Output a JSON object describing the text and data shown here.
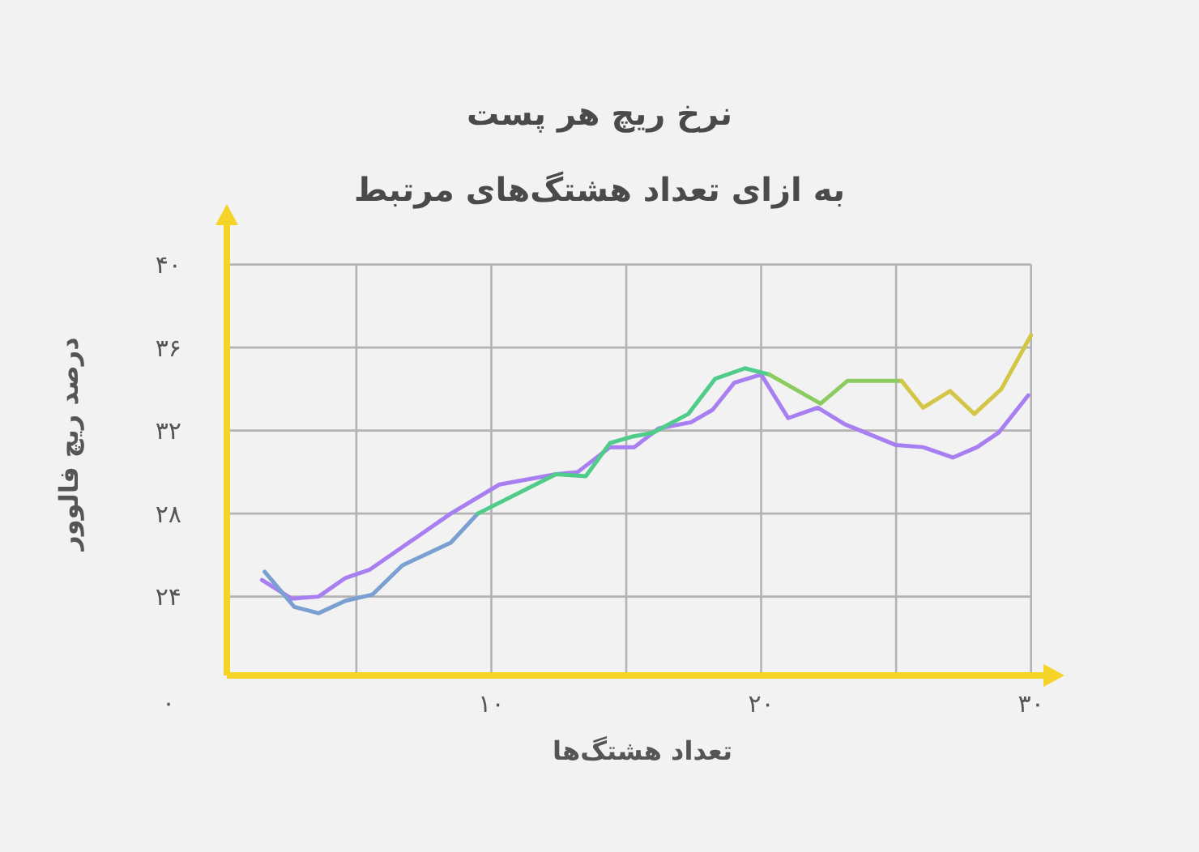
{
  "chart_data": {
    "type": "line",
    "title": "نرخ ریچ هر پست",
    "subtitle": "به ازای تعداد هشتگ‌های مرتبط",
    "xlabel": "تعداد هشتگ‌ها",
    "ylabel": "درصد ریچ فالوور",
    "annotations": [
      "۰"
    ],
    "xlim": [
      0.2,
      31
    ],
    "xticks": [
      {
        "value": 5,
        "label": null
      },
      {
        "value": 10,
        "label": "۱۰"
      },
      {
        "value": 15,
        "label": null
      },
      {
        "value": 20,
        "label": "۲۰"
      },
      {
        "value": 25,
        "label": null
      },
      {
        "value": 30,
        "label": "۳۰"
      }
    ],
    "ylim": [
      20.2,
      42.6
    ],
    "yticks": [
      {
        "value": 24,
        "label": "۲۴"
      },
      {
        "value": 28,
        "label": "۲۸"
      },
      {
        "value": 32,
        "label": "۳۲"
      },
      {
        "value": 36,
        "label": "۳۶"
      },
      {
        "value": 40,
        "label": "۴۰"
      }
    ],
    "grid": true,
    "series": [
      {
        "color": "#a77ff0",
        "x": [
          1.5,
          2.6,
          3.6,
          4.6,
          5.5,
          8.5,
          10.3,
          12.4,
          13.2,
          14.4,
          15.3,
          16.2,
          17.4,
          18.2,
          19.0,
          20.0,
          21.0,
          22.1,
          23.1,
          25.0,
          26.0,
          27.1,
          28.0,
          28.8,
          29.9
        ],
        "values": [
          24.8,
          23.9,
          24.0,
          24.9,
          25.3,
          28.0,
          29.4,
          29.9,
          30.0,
          31.2,
          31.2,
          32.1,
          32.4,
          33.0,
          34.3,
          34.7,
          32.6,
          33.1,
          32.3,
          31.3,
          31.2,
          30.7,
          31.2,
          31.9,
          33.7
        ]
      },
      {
        "color": "#7aa0d2",
        "x": [
          1.6,
          2.7,
          3.6,
          4.6,
          5.6,
          6.7,
          8.5,
          9.5
        ],
        "values": [
          25.2,
          23.5,
          23.2,
          23.8,
          24.1,
          25.5,
          26.6,
          28.0
        ]
      },
      {
        "color": "#4fcc8a",
        "x": [
          9.5,
          12.4,
          13.5,
          14.4,
          15.2,
          16.0,
          17.3,
          18.3,
          19.4,
          20.3
        ],
        "values": [
          28.0,
          29.9,
          29.8,
          31.4,
          31.7,
          31.9,
          32.8,
          34.5,
          35.0,
          34.7
        ]
      },
      {
        "color": "#8ccb5f",
        "x": [
          20.3,
          22.2,
          23.2,
          25.2
        ],
        "values": [
          34.7,
          33.3,
          34.4,
          34.4
        ]
      },
      {
        "color": "#d3c545",
        "x": [
          25.2,
          26.0,
          27.0,
          27.9,
          28.9,
          30.0
        ],
        "values": [
          34.4,
          33.1,
          33.9,
          32.8,
          34.0,
          36.6
        ]
      }
    ]
  }
}
